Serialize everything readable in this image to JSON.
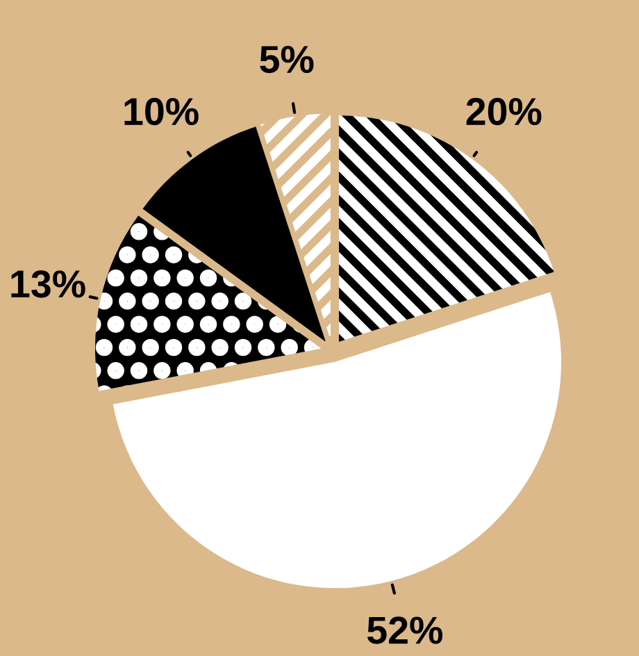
{
  "chart_data": {
    "type": "pie",
    "categories": [
      null,
      null,
      null,
      null,
      null
    ],
    "values": [
      20,
      52,
      13,
      10,
      5
    ],
    "colors": [
      "#ffffff",
      "#ffffff",
      "#000000",
      "#000000",
      "#ffffff"
    ],
    "value_labels": [
      "20%",
      "52%",
      "13%",
      "10%",
      "5%"
    ]
  }
}
